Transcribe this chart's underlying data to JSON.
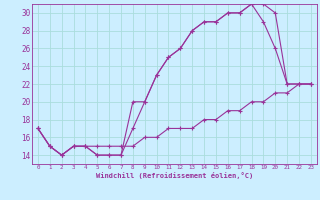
{
  "xlabel": "Windchill (Refroidissement éolien,°C)",
  "xlim": [
    -0.5,
    23.5
  ],
  "ylim": [
    13,
    31
  ],
  "yticks": [
    14,
    16,
    18,
    20,
    22,
    24,
    26,
    28,
    30
  ],
  "xticks": [
    0,
    1,
    2,
    3,
    4,
    5,
    6,
    7,
    8,
    9,
    10,
    11,
    12,
    13,
    14,
    15,
    16,
    17,
    18,
    19,
    20,
    21,
    22,
    23
  ],
  "background_color": "#cceeff",
  "grid_color": "#aadddd",
  "line_color": "#993399",
  "curve1_x": [
    0,
    1,
    2,
    3,
    4,
    5,
    6,
    7,
    8,
    9,
    10,
    11,
    12,
    13,
    14,
    15,
    16,
    17,
    18,
    19,
    20,
    21,
    22,
    23
  ],
  "curve1_y": [
    17,
    15,
    14,
    15,
    15,
    14,
    14,
    14,
    17,
    20,
    23,
    25,
    26,
    28,
    29,
    29,
    30,
    30,
    31,
    31,
    30,
    22,
    22,
    22
  ],
  "curve2_x": [
    0,
    1,
    2,
    3,
    4,
    5,
    6,
    7,
    8,
    9,
    10,
    11,
    12,
    13,
    14,
    15,
    16,
    17,
    18,
    19,
    20,
    21,
    22,
    23
  ],
  "curve2_y": [
    17,
    15,
    14,
    15,
    15,
    14,
    14,
    14,
    20,
    20,
    23,
    25,
    26,
    28,
    29,
    29,
    30,
    30,
    31,
    29,
    26,
    22,
    22,
    22
  ],
  "curve3_x": [
    0,
    1,
    2,
    3,
    4,
    5,
    6,
    7,
    8,
    9,
    10,
    11,
    12,
    13,
    14,
    15,
    16,
    17,
    18,
    19,
    20,
    21,
    22,
    23
  ],
  "curve3_y": [
    17,
    15,
    14,
    15,
    15,
    15,
    15,
    15,
    15,
    16,
    16,
    17,
    17,
    17,
    18,
    18,
    19,
    19,
    20,
    20,
    21,
    21,
    22,
    22
  ]
}
